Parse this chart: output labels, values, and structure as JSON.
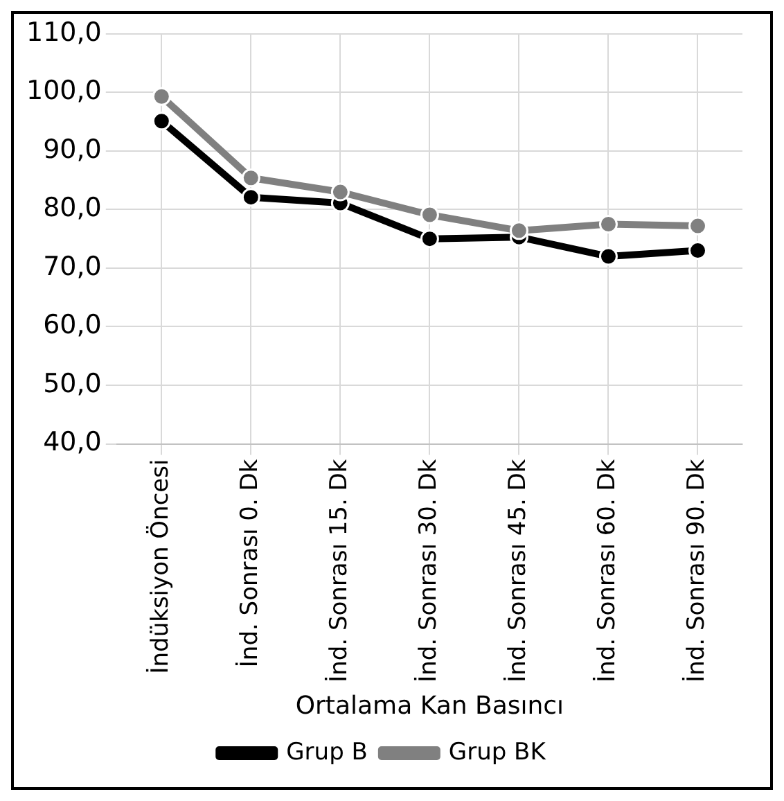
{
  "chart_data": {
    "type": "line",
    "xlabel": "Ortalama Kan Basıncı",
    "categories": [
      "İndüksiyon Öncesi",
      "İnd. Sonrası 0. Dk",
      "İnd. Sonrası 15. Dk",
      "İnd. Sonrası 30. Dk",
      "İnd. Sonrası 45. Dk",
      "İnd. Sonrası 60. Dk",
      "İnd. Sonrası 90. Dk"
    ],
    "series": [
      {
        "name": "Grup B",
        "color": "#000000",
        "values": [
          95.1,
          82.1,
          81.1,
          75.0,
          75.3,
          72.0,
          73.0
        ]
      },
      {
        "name": "Grup BK",
        "color": "#808080",
        "values": [
          99.3,
          85.4,
          83.0,
          79.1,
          76.4,
          77.5,
          77.2
        ]
      }
    ],
    "ylim": [
      40,
      110
    ],
    "yticks": [
      {
        "value": 40,
        "label": "40,0"
      },
      {
        "value": 50,
        "label": "50,0"
      },
      {
        "value": 60,
        "label": "60,0"
      },
      {
        "value": 70,
        "label": "70,0"
      },
      {
        "value": 80,
        "label": "80,0"
      },
      {
        "value": 90,
        "label": "90,0"
      },
      {
        "value": 100,
        "label": "100,0"
      },
      {
        "value": 110,
        "label": "110,0"
      }
    ],
    "grid": true,
    "legend": "bottom",
    "marker": "circle",
    "line_style": "solid"
  }
}
